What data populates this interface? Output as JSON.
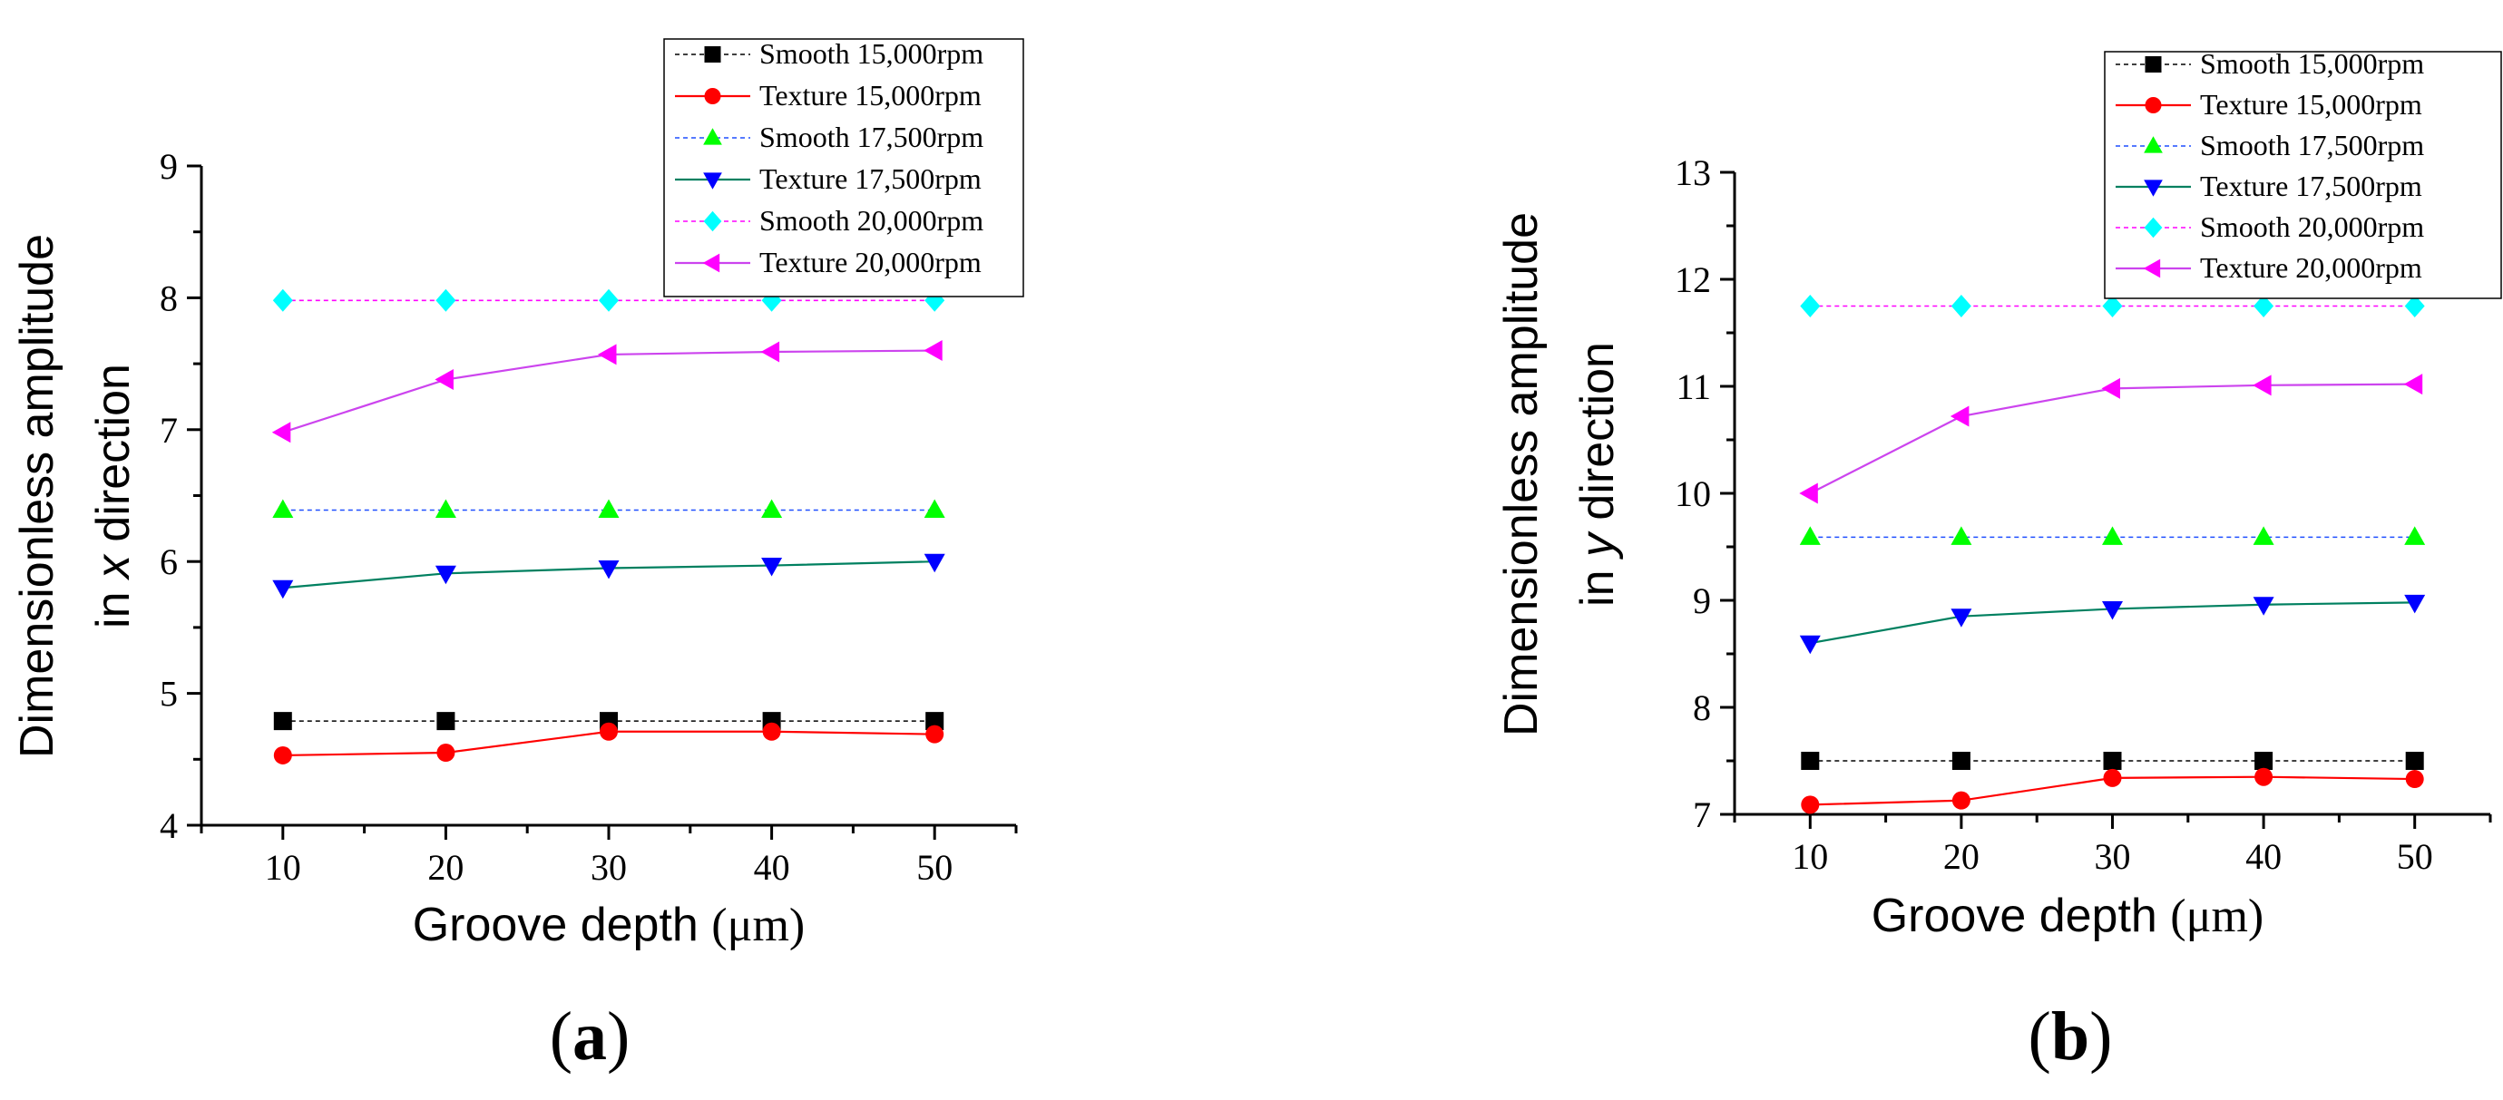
{
  "chart_data": [
    {
      "panel": "(a)",
      "panel_paren_open": "(",
      "panel_letter": "a",
      "panel_paren_close": ")",
      "type": "line",
      "xlabel": "Groove depth (μm)",
      "xlabel_main": "Groove depth ",
      "xlabel_unit": "(μm)",
      "ylabel_line1": "Dimensionless amplitude",
      "ylabel_line2_prefix": "in ",
      "ylabel_line2_var": "x",
      "ylabel_line2_suffix": " direction",
      "x": [
        10,
        20,
        30,
        40,
        50
      ],
      "xlim": [
        5,
        55
      ],
      "ylim": [
        4,
        9
      ],
      "xticks": [
        10,
        20,
        30,
        40,
        50
      ],
      "yticks": [
        4,
        5,
        6,
        7,
        8,
        9
      ],
      "legend_position": "top-right",
      "series": [
        {
          "name": "Smooth 15,000rpm",
          "values": [
            4.79,
            4.79,
            4.79,
            4.79,
            4.79
          ],
          "color": "#000000",
          "marker": "square",
          "line": "dashed"
        },
        {
          "name": "Texture 15,000rpm",
          "values": [
            4.53,
            4.55,
            4.71,
            4.71,
            4.69
          ],
          "color": "#ff0000",
          "marker": "circle",
          "line": "solid"
        },
        {
          "name": "Smooth 17,500rpm",
          "values": [
            6.39,
            6.39,
            6.39,
            6.39,
            6.39
          ],
          "color": "#00ff00",
          "marker": "triangle-up",
          "line": "dashed",
          "line_color": "#1f4fff"
        },
        {
          "name": "Texture 17,500rpm",
          "values": [
            5.8,
            5.91,
            5.95,
            5.97,
            6.0
          ],
          "color": "#0000ff",
          "marker": "triangle-down",
          "line": "solid",
          "line_color": "#008060"
        },
        {
          "name": "Smooth 20,000rpm",
          "values": [
            7.98,
            7.98,
            7.98,
            7.98,
            7.98
          ],
          "color": "#00ffff",
          "marker": "diamond",
          "line": "dashed",
          "line_color": "#ff00ff"
        },
        {
          "name": "Texture 20,000rpm",
          "values": [
            6.98,
            7.38,
            7.57,
            7.59,
            7.6
          ],
          "color": "#ff00ff",
          "marker": "triangle-left",
          "line": "solid",
          "line_color": "#cc44ee"
        }
      ]
    },
    {
      "panel": "(b)",
      "panel_paren_open": "(",
      "panel_letter": "b",
      "panel_paren_close": ")",
      "type": "line",
      "xlabel": "Groove depth (μm)",
      "xlabel_main": "Groove depth ",
      "xlabel_unit": "(μm)",
      "ylabel_line1": "Dimensionless amplitude",
      "ylabel_line2_prefix": "in ",
      "ylabel_line2_var": "y",
      "ylabel_line2_suffix": " direction",
      "x": [
        10,
        20,
        30,
        40,
        50
      ],
      "xlim": [
        5,
        55
      ],
      "ylim": [
        7,
        13
      ],
      "xticks": [
        10,
        20,
        30,
        40,
        50
      ],
      "yticks": [
        7,
        8,
        9,
        10,
        11,
        12,
        13
      ],
      "legend_position": "top-right",
      "series": [
        {
          "name": "Smooth 15,000rpm",
          "values": [
            7.5,
            7.5,
            7.5,
            7.5,
            7.5
          ],
          "color": "#000000",
          "marker": "square",
          "line": "dashed"
        },
        {
          "name": "Texture 15,000rpm",
          "values": [
            7.09,
            7.13,
            7.34,
            7.35,
            7.33
          ],
          "color": "#ff0000",
          "marker": "circle",
          "line": "solid"
        },
        {
          "name": "Smooth 17,500rpm",
          "values": [
            9.59,
            9.59,
            9.59,
            9.59,
            9.59
          ],
          "color": "#00ff00",
          "marker": "triangle-up",
          "line": "dashed",
          "line_color": "#1f4fff"
        },
        {
          "name": "Texture 17,500rpm",
          "values": [
            8.6,
            8.85,
            8.92,
            8.96,
            8.98
          ],
          "color": "#0000ff",
          "marker": "triangle-down",
          "line": "solid",
          "line_color": "#008060"
        },
        {
          "name": "Smooth 20,000rpm",
          "values": [
            11.75,
            11.75,
            11.75,
            11.75,
            11.75
          ],
          "color": "#00ffff",
          "marker": "diamond",
          "line": "dashed",
          "line_color": "#ff00ff"
        },
        {
          "name": "Texture 20,000rpm",
          "values": [
            10.0,
            10.72,
            10.98,
            11.01,
            11.02
          ],
          "color": "#ff00ff",
          "marker": "triangle-left",
          "line": "solid",
          "line_color": "#cc44ee"
        }
      ]
    }
  ]
}
